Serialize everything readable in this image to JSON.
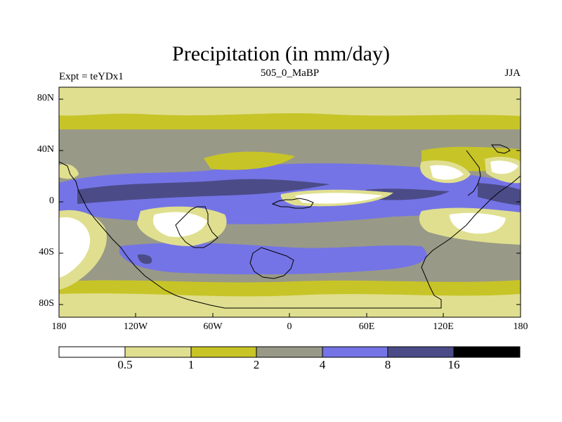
{
  "title": "Precipitation (in mm/day)",
  "left_subtitle": "Expt = teYDx1",
  "center_subtitle": "505_0_MaBP",
  "right_subtitle": "JJA",
  "lat_labels": [
    "80N",
    "40N",
    "0",
    "40S",
    "80S"
  ],
  "lon_labels": [
    "180",
    "120W",
    "60W",
    "0",
    "60E",
    "120E",
    "180"
  ],
  "colorbar": {
    "boundaries": [
      "0.5",
      "1",
      "2",
      "4",
      "8",
      "16"
    ],
    "colors": [
      "#ffffff",
      "#e0df8f",
      "#c7c428",
      "#999988",
      "#7474e6",
      "#4b4b88",
      "#000000"
    ]
  },
  "palette": {
    "very_dry": "#ffffff",
    "dry": "#e0df8f",
    "moderate": "#c7c428",
    "mid": "#999988",
    "wet": "#7474e6",
    "very_wet": "#4b4b88",
    "coast": "#000000"
  }
}
